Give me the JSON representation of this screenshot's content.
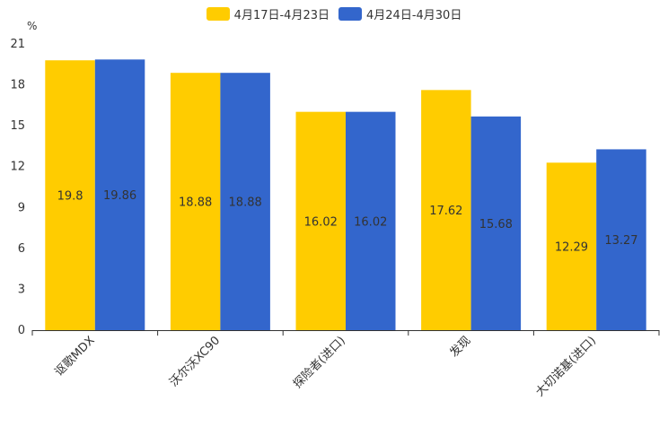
{
  "chart_data": {
    "type": "bar",
    "unit_label": "%",
    "categories": [
      "讴歌MDX",
      "沃尔沃XC90",
      "探险者(进口)",
      "发现",
      "大切诺基(进口)"
    ],
    "series": [
      {
        "name": "4月17日-4月23日",
        "color": "#FFCC00",
        "values": [
          19.8,
          18.88,
          16.02,
          17.62,
          12.29
        ],
        "labels": [
          "19.8",
          "18.88",
          "16.02",
          "17.62",
          "12.29"
        ]
      },
      {
        "name": "4月24日-4月30日",
        "color": "#3366CC",
        "values": [
          19.86,
          18.88,
          16.02,
          15.68,
          13.27
        ],
        "labels": [
          "19.86",
          "18.88",
          "16.02",
          "15.68",
          "13.27"
        ]
      }
    ],
    "ylim": [
      0,
      21
    ],
    "yticks": [
      0,
      3,
      6,
      9,
      12,
      15,
      18,
      21
    ],
    "legend_position": "top-center",
    "grid": false
  }
}
